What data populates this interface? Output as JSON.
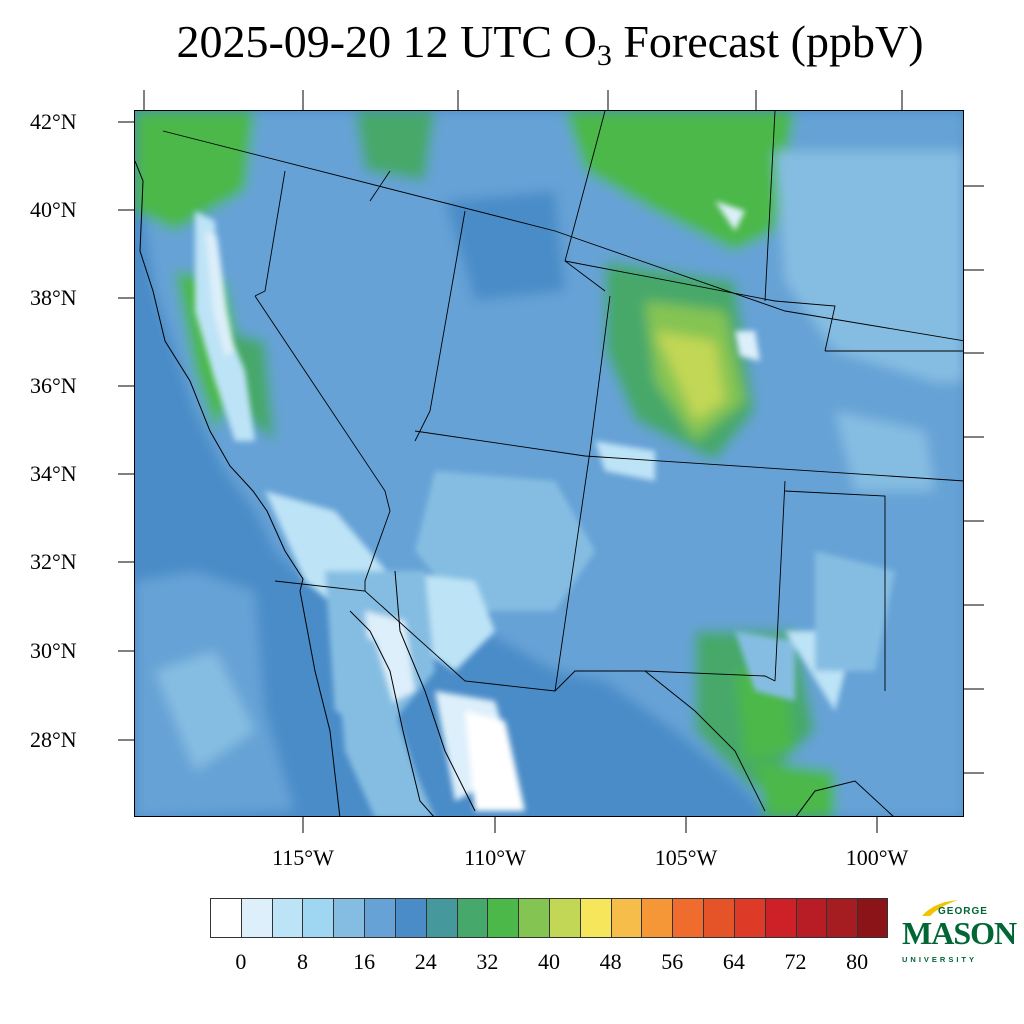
{
  "title": {
    "prefix": "2025-09-20 12 UTC O",
    "subscript": "3",
    "suffix": " Forecast (ppbV)"
  },
  "map": {
    "lat_labels": [
      "42°N",
      "40°N",
      "38°N",
      "36°N",
      "34°N",
      "32°N",
      "30°N",
      "28°N"
    ],
    "lon_labels": [
      "115°W",
      "110°W",
      "105°W",
      "100°W"
    ]
  },
  "colorbar": {
    "colors": [
      "#ffffff",
      "#ddeffa",
      "#bde3f6",
      "#9fd6f2",
      "#85bde2",
      "#66a2d6",
      "#4a8cc8",
      "#45999c",
      "#46a86b",
      "#4cb849",
      "#84c452",
      "#c2d755",
      "#f5e65c",
      "#f7bd4a",
      "#f59637",
      "#ef6b2e",
      "#e55428",
      "#dd3b27",
      "#cd2027",
      "#b81c24",
      "#a51c21",
      "#8b1418"
    ],
    "labels": [
      "0",
      "8",
      "16",
      "24",
      "32",
      "40",
      "48",
      "56",
      "64",
      "72",
      "80"
    ]
  },
  "logo": {
    "line1": "GEORGE",
    "line2": "MASON",
    "line3": "UNIVERSITY",
    "color": "#006633",
    "accent": "#f2c300"
  }
}
